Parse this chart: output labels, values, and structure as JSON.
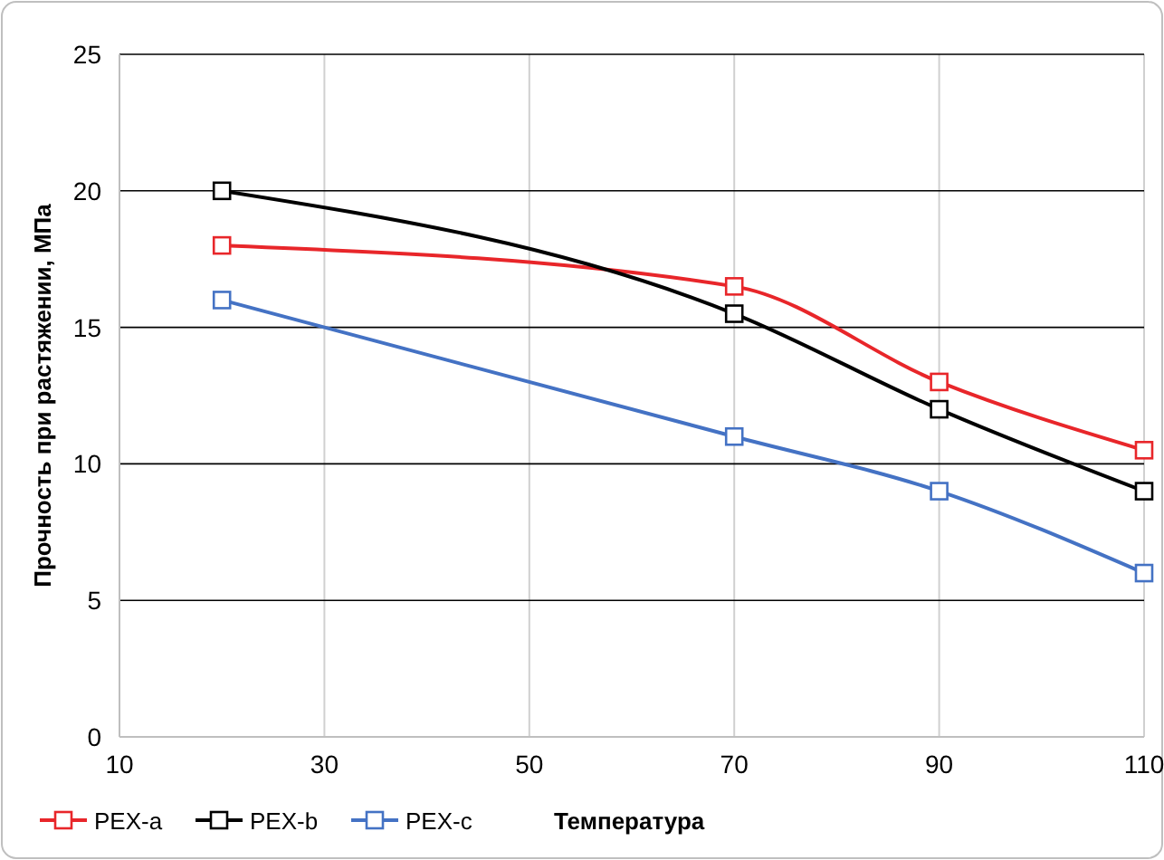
{
  "chart_data": {
    "type": "line",
    "xlabel": "Температура",
    "ylabel": "Прочность при растяжении, МПа",
    "x": [
      20,
      70,
      90,
      110
    ],
    "series": [
      {
        "name": "PEX-a",
        "color": "#e8262a",
        "values": [
          18,
          16.5,
          13,
          10.5
        ]
      },
      {
        "name": "PEX-b",
        "color": "#000000",
        "values": [
          20,
          15.5,
          12,
          9
        ]
      },
      {
        "name": "PEX-c",
        "color": "#4472c4",
        "values": [
          16,
          11,
          9,
          6
        ]
      }
    ],
    "xlim": [
      10,
      110
    ],
    "xticks": [
      10,
      30,
      50,
      70,
      90,
      110
    ],
    "ylim": [
      0,
      25
    ],
    "yticks": [
      0,
      5,
      10,
      15,
      20,
      25
    ],
    "grid": true,
    "legend": "bottom left",
    "marker": "square",
    "line_style": "solid"
  }
}
